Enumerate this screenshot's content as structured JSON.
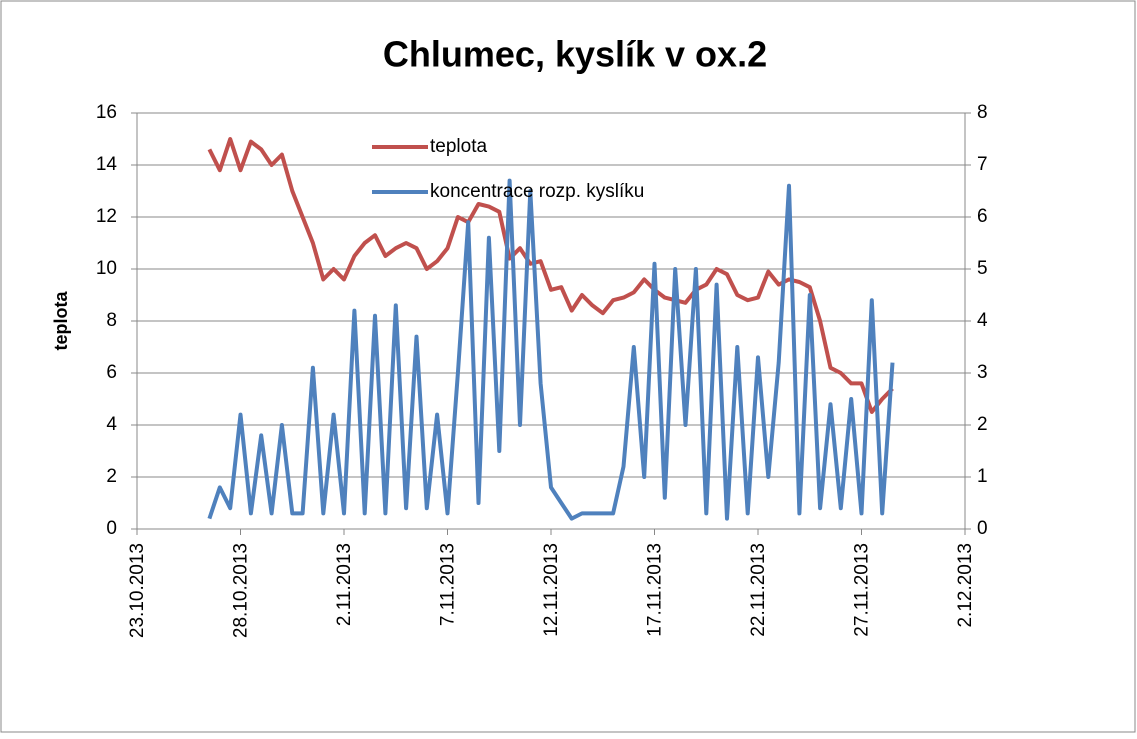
{
  "chart_data": {
    "type": "line",
    "title": "Chlumec, kyslík v ox.2",
    "ylabel": "teplota",
    "x": [
      41573.5,
      41574,
      41574.5,
      41575,
      41575.5,
      41576,
      41576.5,
      41577,
      41577.5,
      41578,
      41578.5,
      41579,
      41579.5,
      41580,
      41580.5,
      41581,
      41581.5,
      41582,
      41582.5,
      41583,
      41583.5,
      41584,
      41584.5,
      41585,
      41585.5,
      41586,
      41586.5,
      41587,
      41587.5,
      41588,
      41588.5,
      41589,
      41589.5,
      41590,
      41590.5,
      41591,
      41591.5,
      41592,
      41592.5,
      41593,
      41593.5,
      41594,
      41594.5,
      41595,
      41595.5,
      41596,
      41596.5,
      41597,
      41597.5,
      41598,
      41598.5,
      41599,
      41599.5,
      41600,
      41600.5,
      41601,
      41601.5,
      41602,
      41602.5,
      41603,
      41603.5,
      41604,
      41604.5,
      41605,
      41605.5,
      41606,
      41606.5
    ],
    "series": [
      {
        "name": "teplota",
        "color": "#c0504d",
        "axis": "y",
        "values": [
          14.6,
          13.8,
          15.0,
          13.8,
          14.9,
          14.6,
          14.0,
          14.4,
          13.0,
          12.0,
          11.0,
          9.6,
          10.0,
          9.6,
          10.5,
          11.0,
          11.3,
          10.5,
          10.8,
          11.0,
          10.8,
          10.0,
          10.3,
          10.8,
          12.0,
          11.8,
          12.5,
          12.4,
          12.2,
          10.4,
          10.8,
          10.2,
          10.3,
          9.2,
          9.3,
          8.4,
          9.0,
          8.6,
          8.3,
          8.8,
          8.9,
          9.1,
          9.6,
          9.2,
          8.9,
          8.8,
          8.7,
          9.2,
          9.4,
          10.0,
          9.8,
          9.0,
          8.8,
          8.9,
          9.9,
          9.4,
          9.6,
          9.5,
          9.3,
          8.0,
          6.2,
          6.0,
          5.6,
          5.6,
          4.5,
          5.0,
          5.4
        ]
      },
      {
        "name": "koncentrace rozp. kyslíku",
        "color": "#4f81bd",
        "axis": "y2",
        "values": [
          0.2,
          0.8,
          0.4,
          2.2,
          0.3,
          1.8,
          0.3,
          2.0,
          0.3,
          0.3,
          3.1,
          0.3,
          2.2,
          0.3,
          4.2,
          0.3,
          4.1,
          0.3,
          4.3,
          0.4,
          3.7,
          0.4,
          2.2,
          0.3,
          3.0,
          5.9,
          0.5,
          5.6,
          1.5,
          6.7,
          2.0,
          6.5,
          2.8,
          0.8,
          0.5,
          0.2,
          0.3,
          0.3,
          0.3,
          0.3,
          1.2,
          3.5,
          1.0,
          5.1,
          0.6,
          5.0,
          2.0,
          5.0,
          0.3,
          4.7,
          0.2,
          3.5,
          0.3,
          3.3,
          1.0,
          3.2,
          6.6,
          0.3,
          4.5,
          0.4,
          2.4,
          0.4,
          2.5,
          0.3,
          4.4,
          0.3,
          3.2
        ]
      }
    ],
    "xlim": [
      41570,
      41610
    ],
    "xticks": [
      {
        "value": 41570,
        "label": "23.10.2013"
      },
      {
        "value": 41575,
        "label": "28.10.2013"
      },
      {
        "value": 41580,
        "label": "2.11.2013"
      },
      {
        "value": 41585,
        "label": "7.11.2013"
      },
      {
        "value": 41590,
        "label": "12.11.2013"
      },
      {
        "value": 41595,
        "label": "17.11.2013"
      },
      {
        "value": 41600,
        "label": "22.11.2013"
      },
      {
        "value": 41605,
        "label": "27.11.2013"
      },
      {
        "value": 41610,
        "label": "2.12.2013"
      }
    ],
    "ylim": [
      0,
      16
    ],
    "yticks": [
      0,
      2,
      4,
      6,
      8,
      10,
      12,
      14,
      16
    ],
    "y2lim": [
      0,
      8
    ],
    "y2ticks": [
      0,
      1,
      2,
      3,
      4,
      5,
      6,
      7,
      8
    ],
    "grid": true,
    "legend": "top"
  }
}
